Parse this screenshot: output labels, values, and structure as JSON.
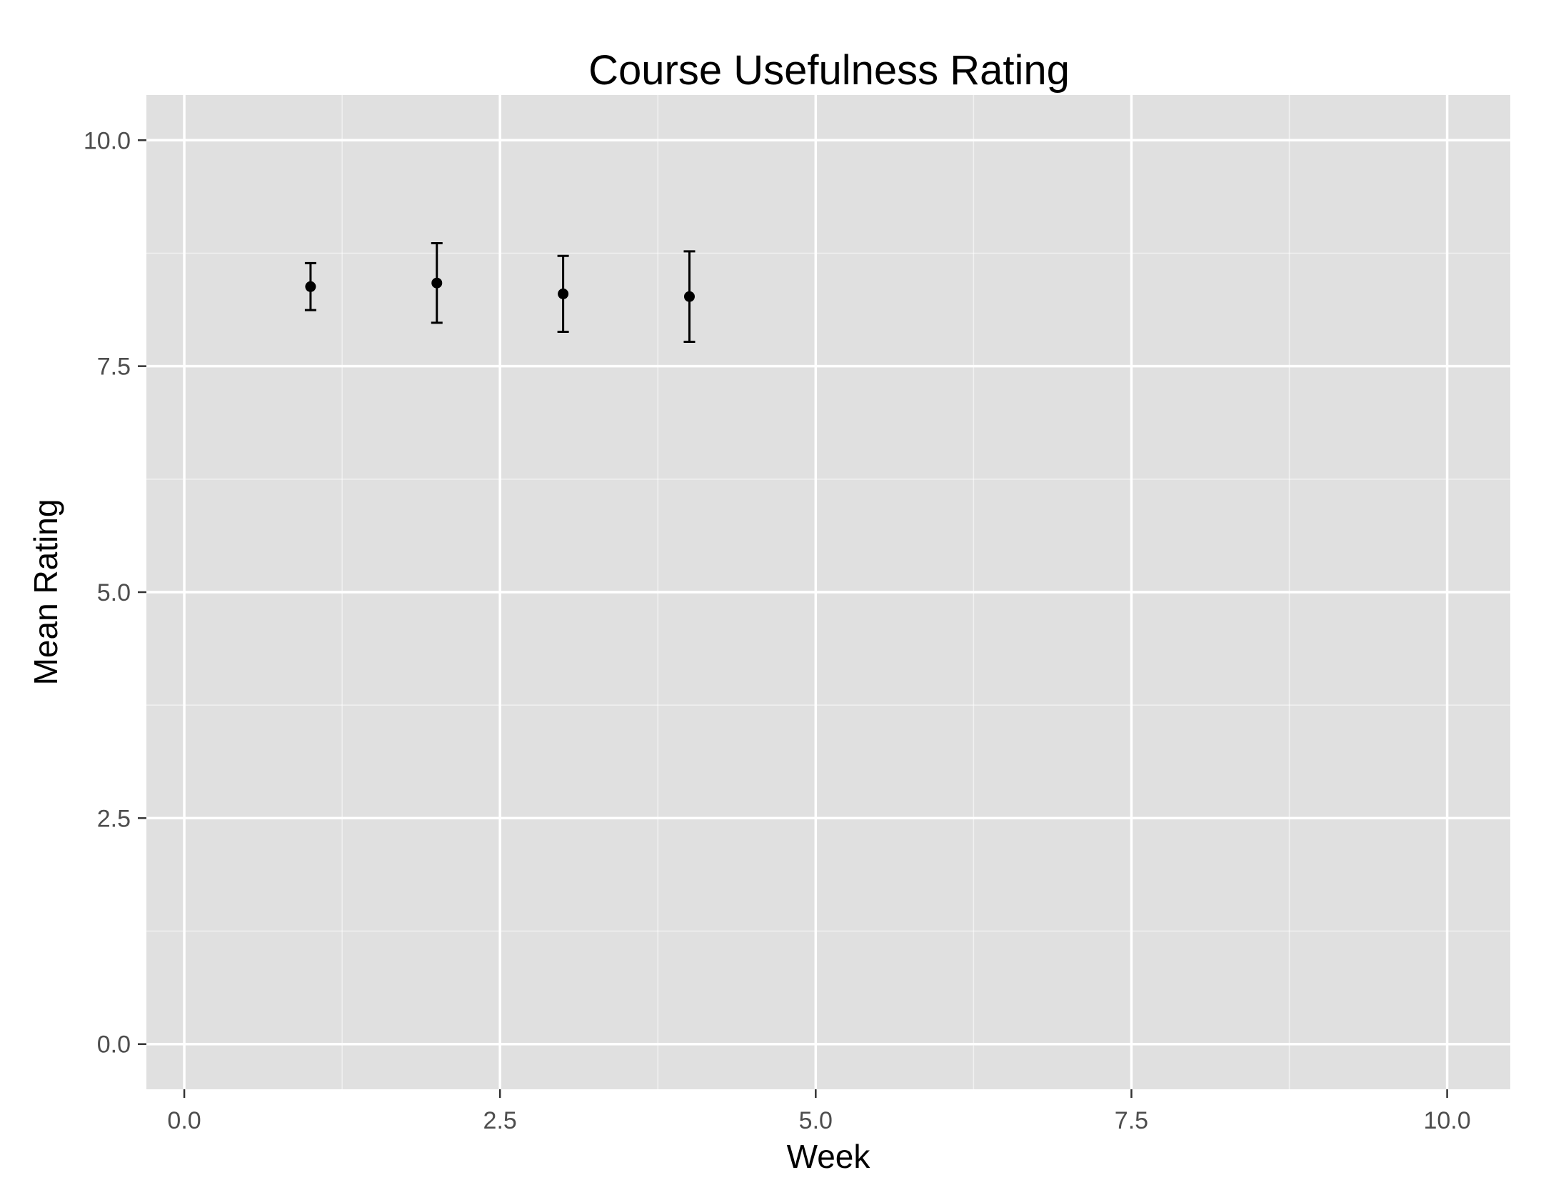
{
  "chart_data": {
    "type": "scatter",
    "title": "Course Usefulness Rating",
    "xlabel": "Week",
    "ylabel": "Mean Rating",
    "xlim": [
      -0.3,
      10.5
    ],
    "ylim": [
      -0.5,
      10.5
    ],
    "x_ticks": [
      0,
      2.5,
      5,
      7.5,
      10
    ],
    "y_ticks": [
      0,
      2.5,
      5,
      7.5,
      10
    ],
    "x_tick_labels": [
      "0.0",
      "2.5",
      "5.0",
      "7.5",
      "10.0"
    ],
    "y_tick_labels": [
      "0.0",
      "2.5",
      "5.0",
      "7.5",
      "10.0"
    ],
    "grid": true,
    "legend": "none",
    "colors": {
      "panel": "#e0e0e0",
      "grid": "#ffffff",
      "marks": "#000000"
    },
    "points": [
      {
        "x": 1,
        "y": 8.38,
        "ymin": 8.12,
        "ymax": 8.64
      },
      {
        "x": 2,
        "y": 8.42,
        "ymin": 7.98,
        "ymax": 8.86
      },
      {
        "x": 3,
        "y": 8.3,
        "ymin": 7.88,
        "ymax": 8.72
      },
      {
        "x": 4,
        "y": 8.27,
        "ymin": 7.77,
        "ymax": 8.77
      }
    ]
  }
}
